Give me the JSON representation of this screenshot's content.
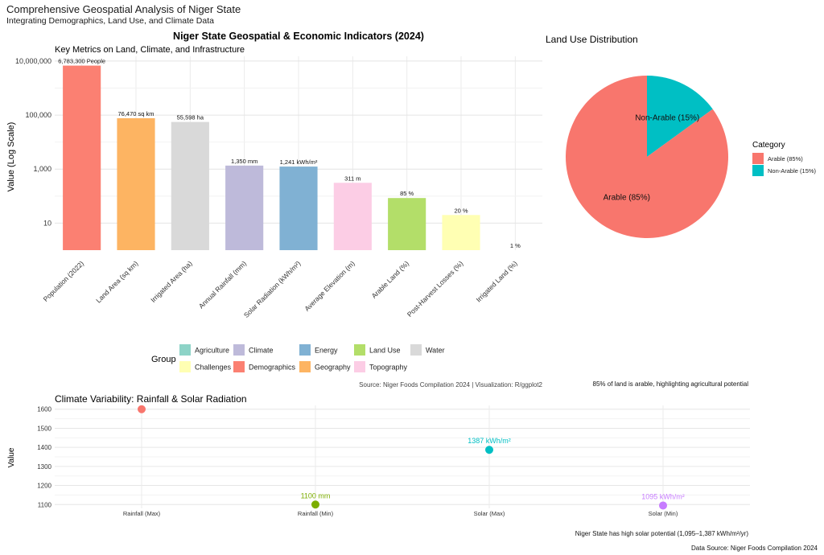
{
  "page": {
    "title": "Comprehensive Geospatial Analysis of Niger State",
    "subtitle": "Integrating Demographics, Land Use, and Climate Data",
    "footer": "Data Source: Niger Foods Compilation 2024"
  },
  "chart_data": [
    {
      "type": "bar",
      "title": "Niger State Geospatial & Economic Indicators (2024)",
      "subtitle": "Key Metrics on Land, Climate, and Infrastructure",
      "xlabel": "",
      "ylabel": "Value (Log Scale)",
      "yscale": "log",
      "ylim": [
        1,
        15000000
      ],
      "yticks": [
        10,
        1000,
        100000,
        10000000
      ],
      "ytick_labels": [
        "10",
        "1,000",
        "100,000",
        "10,000,000"
      ],
      "caption": "Source: Niger Foods Compilation 2024 | Visualization: R/ggplot2",
      "categories": [
        "Population (2022)",
        "Land Area (sq km)",
        "Irrigated Area (ha)",
        "Annual Rainfall (mm)",
        "Solar Radiation (kWh/m²)",
        "Average Elevation (m)",
        "Arable Land (%)",
        "Post-Harvest Losses (%)",
        "Irrigated Land (%)"
      ],
      "values": [
        6783300,
        76470,
        55598,
        1350,
        1241,
        311,
        85,
        20,
        1
      ],
      "data_labels": [
        "6,783,300 People",
        "76,470 sq km",
        "55,598 ha",
        "1,350 mm",
        "1,241 kWh/m²",
        "311 m",
        "85 %",
        "20 %",
        "1 %"
      ],
      "groups": [
        "Demographics",
        "Geography",
        "Water",
        "Climate",
        "Energy",
        "Topography",
        "Land Use",
        "Challenges",
        "Agriculture"
      ],
      "legend": {
        "title": "Group",
        "placement": "bottom",
        "entries": [
          {
            "name": "Agriculture",
            "color": "#8DD3C7"
          },
          {
            "name": "Climate",
            "color": "#BEBADA"
          },
          {
            "name": "Energy",
            "color": "#80B1D3"
          },
          {
            "name": "Land Use",
            "color": "#B3DE69"
          },
          {
            "name": "Water",
            "color": "#D9D9D9"
          },
          {
            "name": "Challenges",
            "color": "#FFFFB3"
          },
          {
            "name": "Demographics",
            "color": "#FB8072"
          },
          {
            "name": "Geography",
            "color": "#FDB462"
          },
          {
            "name": "Topography",
            "color": "#FCCDE5"
          }
        ]
      }
    },
    {
      "type": "pie",
      "title": "Land Use Distribution",
      "caption": "85% of land is arable, highlighting agricultural potential",
      "slices": [
        {
          "label": "Arable (85%)",
          "value": 85,
          "color": "#F8766D"
        },
        {
          "label": "Non-Arable (15%)",
          "value": 15,
          "color": "#00BFC4"
        }
      ],
      "legend": {
        "title": "Category",
        "placement": "right",
        "entries": [
          "Arable (85%)",
          "Non-Arable (15%)"
        ]
      }
    },
    {
      "type": "scatter",
      "title": "Climate Variability: Rainfall & Solar Radiation",
      "xlabel": "",
      "ylabel": "Value",
      "ylim": [
        1080,
        1620
      ],
      "yticks": [
        1100,
        1200,
        1300,
        1400,
        1500,
        1600
      ],
      "caption": "Niger State has high solar potential (1,095–1,387 kWh/m²/yr)",
      "points": [
        {
          "x": "Rainfall (Max)",
          "y": 1600,
          "label": "",
          "color": "#F8766D"
        },
        {
          "x": "Rainfall (Min)",
          "y": 1100,
          "label": "1100 mm",
          "color": "#7CAE00"
        },
        {
          "x": "Solar (Max)",
          "y": 1387,
          "label": "1387 kWh/m²",
          "color": "#00BFC4"
        },
        {
          "x": "Solar (Min)",
          "y": 1095,
          "label": "1095 kWh/m²",
          "color": "#C77CFF"
        }
      ]
    }
  ]
}
